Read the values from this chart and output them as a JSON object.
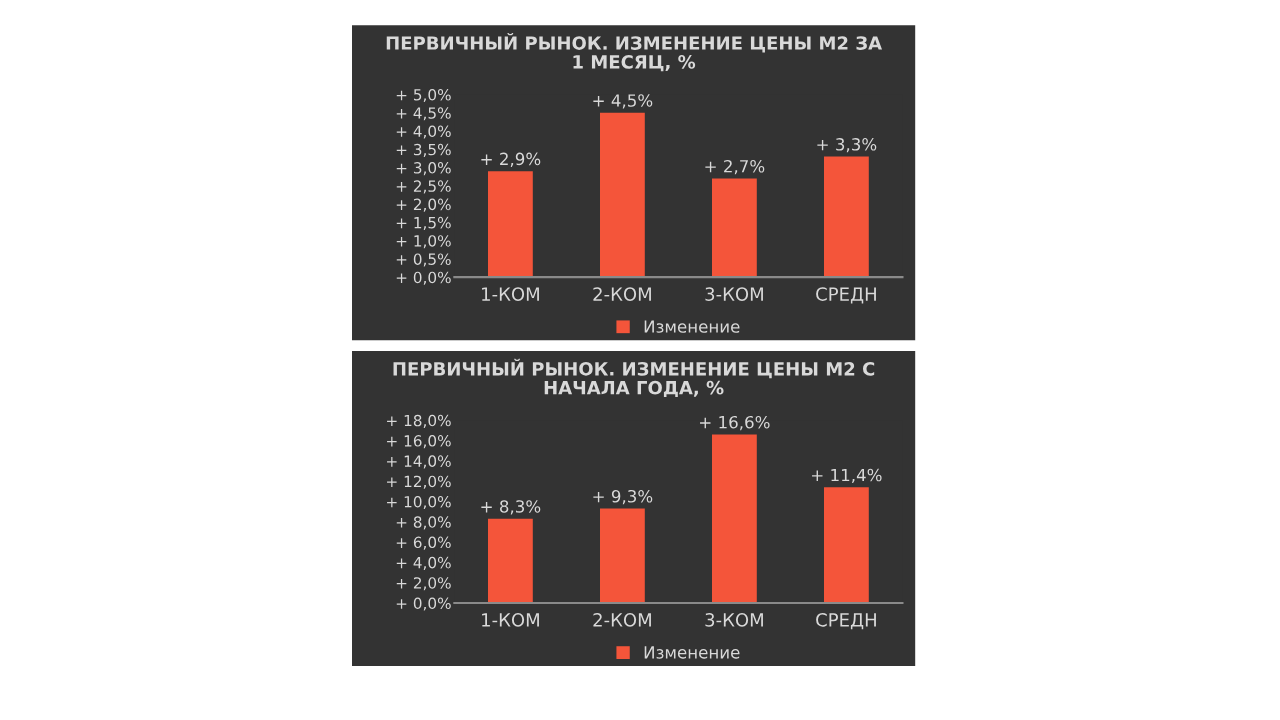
{
  "chart_data": [
    {
      "type": "bar",
      "title": "ПЕРВИЧНЫЙ РЫНОК. ИЗМЕНЕНИЕ ЦЕНЫ М2 ЗА\n1 МЕСЯЦ, %",
      "categories": [
        "1-КОМ",
        "2-КОМ",
        "3-КОМ",
        "СРЕДН"
      ],
      "series": [
        {
          "name": "Изменение",
          "color": "#f4553a",
          "values": [
            2.9,
            4.5,
            2.7,
            3.3
          ],
          "value_labels": [
            "+ 2,9%",
            "+ 4,5%",
            "+ 2,7%",
            "+ 3,3%"
          ]
        }
      ],
      "ylim": [
        0,
        5
      ],
      "yticks": [
        {
          "value": 0,
          "label": "+ 0,0%"
        },
        {
          "value": 0.5,
          "label": "+ 0,5%"
        },
        {
          "value": 1,
          "label": "+ 1,0%"
        },
        {
          "value": 1.5,
          "label": "+ 1,5%"
        },
        {
          "value": 2,
          "label": "+ 2,0%"
        },
        {
          "value": 2.5,
          "label": "+ 2,5%"
        },
        {
          "value": 3,
          "label": "+ 3,0%"
        },
        {
          "value": 3.5,
          "label": "+ 3,5%"
        },
        {
          "value": 4,
          "label": "+ 4,0%"
        },
        {
          "value": 4.5,
          "label": "+ 4,5%"
        },
        {
          "value": 5,
          "label": "+ 5,0%"
        }
      ],
      "grid": false,
      "legend": "bottom"
    },
    {
      "type": "bar",
      "title": "ПЕРВИЧНЫЙ РЫНОК. ИЗМЕНЕНИЕ ЦЕНЫ М2 С\nНАЧАЛА ГОДА, %",
      "categories": [
        "1-КОМ",
        "2-КОМ",
        "3-КОМ",
        "СРЕДН"
      ],
      "series": [
        {
          "name": "Изменение",
          "color": "#f4553a",
          "values": [
            8.3,
            9.3,
            16.6,
            11.4
          ],
          "value_labels": [
            "+ 8,3%",
            "+ 9,3%",
            "+ 16,6%",
            "+ 11,4%"
          ]
        }
      ],
      "ylim": [
        0,
        18
      ],
      "yticks": [
        {
          "value": 0,
          "label": "+ 0,0%"
        },
        {
          "value": 2,
          "label": "+ 2,0%"
        },
        {
          "value": 4,
          "label": "+ 4,0%"
        },
        {
          "value": 6,
          "label": "+ 6,0%"
        },
        {
          "value": 8,
          "label": "+ 8,0%"
        },
        {
          "value": 10,
          "label": "+ 10,0%"
        },
        {
          "value": 12,
          "label": "+ 12,0%"
        },
        {
          "value": 14,
          "label": "+ 14,0%"
        },
        {
          "value": 16,
          "label": "+ 16,0%"
        },
        {
          "value": 18,
          "label": "+ 18,0%"
        }
      ],
      "grid": false,
      "legend": "bottom"
    }
  ]
}
